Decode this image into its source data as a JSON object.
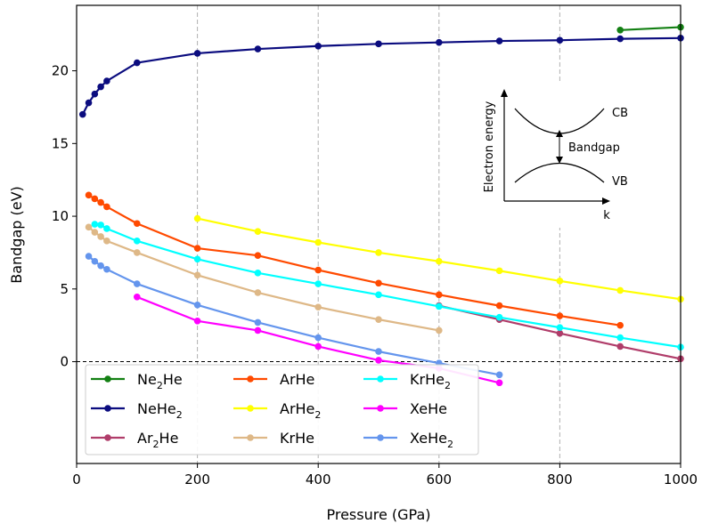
{
  "chart_data": {
    "type": "line",
    "title": "",
    "xlabel": "Pressure (GPa)",
    "ylabel": "Bandgap (eV)",
    "xlim": [
      0,
      1000
    ],
    "ylim": [
      -7,
      24.5
    ],
    "xticks": [
      0,
      200,
      400,
      600,
      800,
      1000
    ],
    "yticks": [
      0,
      5,
      10,
      15,
      20
    ],
    "vgrid": [
      200,
      400,
      600,
      800
    ],
    "zero_line": 0,
    "series": [
      {
        "name": "Ne",
        "sub": "2",
        "rest": "He",
        "color": "#138013",
        "x": [
          900,
          1000
        ],
        "y": [
          22.8,
          23.0
        ]
      },
      {
        "name": "NeHe",
        "sub": "2",
        "rest": "",
        "color": "#0b0c7f",
        "x": [
          10,
          20,
          30,
          40,
          50,
          100,
          200,
          300,
          400,
          500,
          600,
          700,
          800,
          900,
          1000
        ],
        "y": [
          17.0,
          17.8,
          18.4,
          18.9,
          19.3,
          20.55,
          21.2,
          21.5,
          21.7,
          21.85,
          21.95,
          22.05,
          22.1,
          22.2,
          22.25
        ]
      },
      {
        "name": "Ar",
        "sub": "2",
        "rest": "He",
        "color": "#b03d6a",
        "x": [
          600,
          700,
          800,
          900,
          1000
        ],
        "y": [
          3.85,
          2.9,
          1.95,
          1.05,
          0.2
        ]
      },
      {
        "name": "ArHe",
        "sub": "",
        "rest": "",
        "color": "#ff4a00",
        "x": [
          20,
          30,
          40,
          50,
          100,
          200,
          300,
          400,
          500,
          600,
          700,
          800,
          900
        ],
        "y": [
          11.45,
          11.2,
          10.95,
          10.65,
          9.5,
          7.8,
          7.3,
          6.3,
          5.4,
          4.6,
          3.85,
          3.15,
          2.5
        ]
      },
      {
        "name": "ArHe",
        "sub": "2",
        "rest": "",
        "color": "#ffff00",
        "x": [
          200,
          300,
          400,
          500,
          600,
          700,
          800,
          900,
          1000
        ],
        "y": [
          9.85,
          8.95,
          8.2,
          7.5,
          6.9,
          6.25,
          5.55,
          4.9,
          4.3
        ]
      },
      {
        "name": "KrHe",
        "sub": "",
        "rest": "",
        "color": "#deb887",
        "x": [
          20,
          30,
          40,
          50,
          100,
          200,
          300,
          400,
          500,
          600
        ],
        "y": [
          9.25,
          8.9,
          8.6,
          8.3,
          7.5,
          5.95,
          4.75,
          3.75,
          2.9,
          2.15
        ]
      },
      {
        "name": "KrHe",
        "sub": "2",
        "rest": "",
        "color": "#00ffff",
        "x": [
          30,
          40,
          50,
          100,
          200,
          300,
          400,
          500,
          600,
          700,
          800,
          900,
          1000
        ],
        "y": [
          9.45,
          9.4,
          9.15,
          8.3,
          7.05,
          6.1,
          5.35,
          4.6,
          3.8,
          3.05,
          2.35,
          1.65,
          1.0
        ]
      },
      {
        "name": "XeHe",
        "sub": "",
        "rest": "",
        "color": "#ff00ff",
        "x": [
          100,
          200,
          300,
          400,
          500,
          600,
          700
        ],
        "y": [
          4.45,
          2.8,
          2.15,
          1.05,
          0.1,
          -0.45,
          -1.45
        ]
      },
      {
        "name": "XeHe",
        "sub": "2",
        "rest": "",
        "color": "#6495ed",
        "x": [
          20,
          30,
          40,
          50,
          100,
          200,
          300,
          400,
          500,
          600,
          700
        ],
        "y": [
          7.25,
          6.9,
          6.6,
          6.35,
          5.35,
          3.9,
          2.7,
          1.65,
          0.7,
          -0.1,
          -0.9
        ]
      }
    ],
    "legend": {
      "placement": "bottom-left",
      "columns": 3
    },
    "inset": {
      "ylabel": "Electron energy",
      "xlabel": "k",
      "cb_label": "CB",
      "vb_label": "VB",
      "gap_label": "Bandgap"
    }
  }
}
